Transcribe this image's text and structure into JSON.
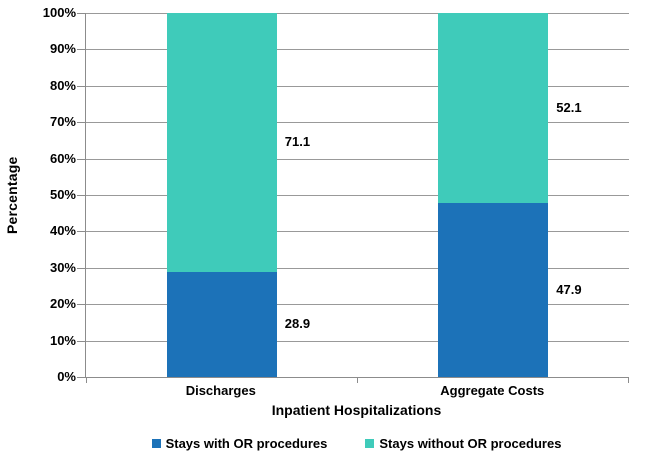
{
  "chart_data": {
    "type": "bar",
    "stacked": true,
    "percent_stacked": true,
    "categories": [
      "Discharges",
      "Aggregate Costs"
    ],
    "series": [
      {
        "name": "Stays with OR procedures",
        "color": "#1C72B8",
        "values": [
          28.9,
          47.9
        ]
      },
      {
        "name": "Stays without OR procedures",
        "color": "#3FCBBA",
        "values": [
          71.1,
          52.1
        ]
      }
    ],
    "data_labels": [
      {
        "category": "Discharges",
        "with_or": 28.9,
        "without_or": 71.1
      },
      {
        "category": "Aggregate Costs",
        "with_or": 47.9,
        "without_or": 52.1
      }
    ],
    "title": "",
    "xlabel": "Inpatient Hospitalizations",
    "ylabel": "Percentage",
    "ylim": [
      0,
      100
    ],
    "ytick_step": 10,
    "ytick_suffix": "%",
    "grid": true,
    "legend_position": "bottom",
    "colors": {
      "background": "#FFFFFF",
      "axis_line": "#8C8C8C",
      "grid_line": "#999999",
      "text": "#000000"
    }
  }
}
